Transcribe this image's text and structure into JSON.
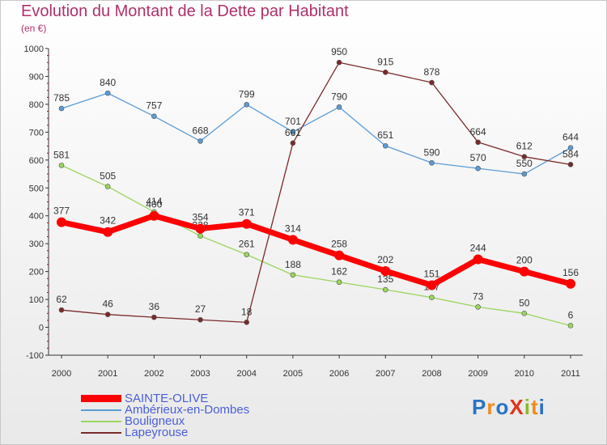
{
  "header": {
    "title": "Evolution du Montant de la Dette par Habitant",
    "unit": "(en €)"
  },
  "colors": {
    "title": "#b0306a",
    "legend_text": "#4a5fd6",
    "axis": "#333333",
    "tick_red": "#cc0000"
  },
  "logo": {
    "text": "ProXiti",
    "letters": [
      "P",
      "r",
      "o",
      "X",
      "i",
      "t",
      "i"
    ],
    "letter_colors": [
      "#2a73c4",
      "#f08a1c",
      "#2a73c4",
      "#e0331a",
      "#86bd27",
      "#f08a1c",
      "#2a73c4"
    ]
  },
  "chart_data": {
    "type": "line",
    "title": "Evolution du Montant de la Dette par Habitant",
    "ylabel": "(en €)",
    "xlabel": "",
    "x": [
      "2000",
      "2001",
      "2002",
      "2003",
      "2004",
      "2005",
      "2006",
      "2007",
      "2008",
      "2009",
      "2010",
      "2011"
    ],
    "ylim": [
      -100,
      1000
    ],
    "yticks": [
      "-100",
      "0",
      "100",
      "200",
      "300",
      "400",
      "500",
      "600",
      "700",
      "800",
      "900",
      "1000"
    ],
    "grid": false,
    "legend_position": "bottom-left",
    "series": [
      {
        "name": "SAINTE-OLIVE",
        "color": "#ff0000",
        "values": [
          377,
          342,
          400,
          354,
          371,
          314,
          258,
          202,
          151,
          244,
          200,
          156
        ],
        "labels": [
          "377",
          "342",
          "400",
          "354",
          "371",
          "314",
          "258",
          "202",
          "151",
          "244",
          "200",
          "156"
        ],
        "thick": true
      },
      {
        "name": "Ambérieux-en-Dombes",
        "color": "#5b9bd5",
        "values": [
          785,
          840,
          757,
          668,
          799,
          701,
          790,
          651,
          590,
          570,
          550,
          644
        ],
        "labels": [
          "785",
          "840",
          "757",
          "668",
          "799",
          "701",
          "790",
          "651",
          "590",
          "570",
          "550",
          "644"
        ]
      },
      {
        "name": "Bouligneux",
        "color": "#99d65c",
        "values": [
          581,
          505,
          414,
          328,
          261,
          188,
          162,
          135,
          107,
          73,
          50,
          6
        ],
        "labels": [
          "581",
          "505",
          "414",
          "328",
          "261",
          "188",
          "162",
          "135",
          "107",
          "73",
          "50",
          "6"
        ]
      },
      {
        "name": "Lapeyrouse",
        "color": "#7b2a2a",
        "values": [
          62,
          46,
          36,
          27,
          18,
          661,
          950,
          915,
          878,
          664,
          612,
          584
        ],
        "labels": [
          "62",
          "46",
          "36",
          "27",
          "18",
          "661",
          "950",
          "915",
          "878",
          "664",
          "612",
          "584"
        ],
        "break_after_index": 4
      }
    ]
  }
}
